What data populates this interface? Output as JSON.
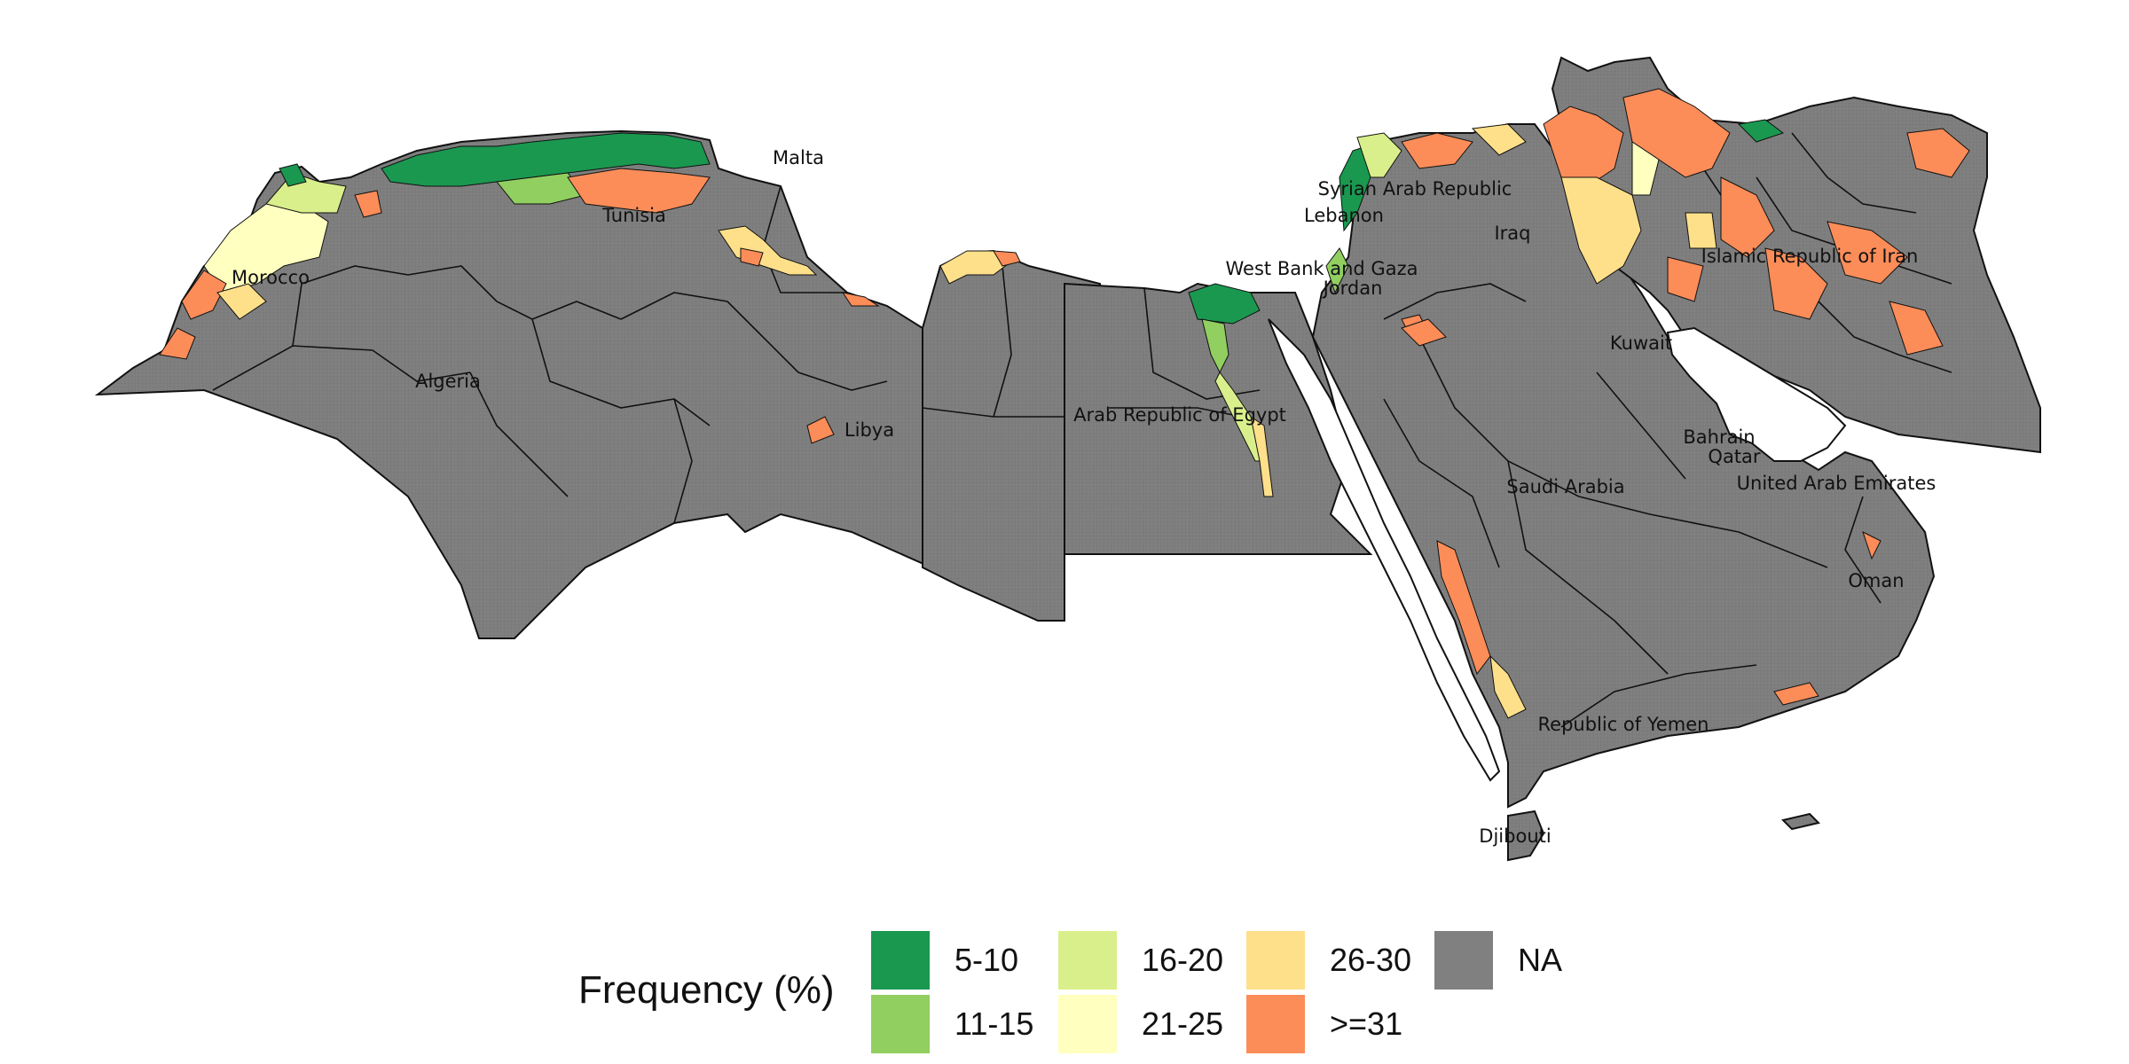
{
  "map": {
    "country_labels": [
      {
        "id": "morocco",
        "text": "Morocco"
      },
      {
        "id": "algeria",
        "text": "Algeria"
      },
      {
        "id": "tunisia",
        "text": "Tunisia"
      },
      {
        "id": "malta",
        "text": "Malta"
      },
      {
        "id": "libya",
        "text": "Libya"
      },
      {
        "id": "egypt",
        "text": "Arab Republic of Egypt"
      },
      {
        "id": "west_bank_gaza",
        "text": "West Bank and Gaza"
      },
      {
        "id": "lebanon",
        "text": "Lebanon"
      },
      {
        "id": "syria",
        "text": "Syrian Arab Republic"
      },
      {
        "id": "jordan",
        "text": "Jordan"
      },
      {
        "id": "iraq",
        "text": "Iraq"
      },
      {
        "id": "iran",
        "text": "Islamic Republic of Iran"
      },
      {
        "id": "kuwait",
        "text": "Kuwait"
      },
      {
        "id": "saudi_arabia",
        "text": "Saudi Arabia"
      },
      {
        "id": "bahrain",
        "text": "Bahrain"
      },
      {
        "id": "qatar",
        "text": "Qatar"
      },
      {
        "id": "uae",
        "text": "United Arab Emirates"
      },
      {
        "id": "oman",
        "text": "Oman"
      },
      {
        "id": "yemen",
        "text": "Republic of Yemen"
      },
      {
        "id": "djibouti",
        "text": "Djibouti"
      }
    ],
    "colors": {
      "na": "#808080",
      "border": "#111111"
    }
  },
  "legend": {
    "title": "Frequency (%)",
    "items": [
      {
        "label": "5-10",
        "color": "#1a9850"
      },
      {
        "label": "11-15",
        "color": "#91cf60"
      },
      {
        "label": "16-20",
        "color": "#d9ef8b"
      },
      {
        "label": "21-25",
        "color": "#ffffbf"
      },
      {
        "label": "26-30",
        "color": "#fee08b"
      },
      {
        "label": ">=31",
        "color": "#fc8d59"
      },
      {
        "label": "NA",
        "color": "#808080"
      }
    ]
  }
}
